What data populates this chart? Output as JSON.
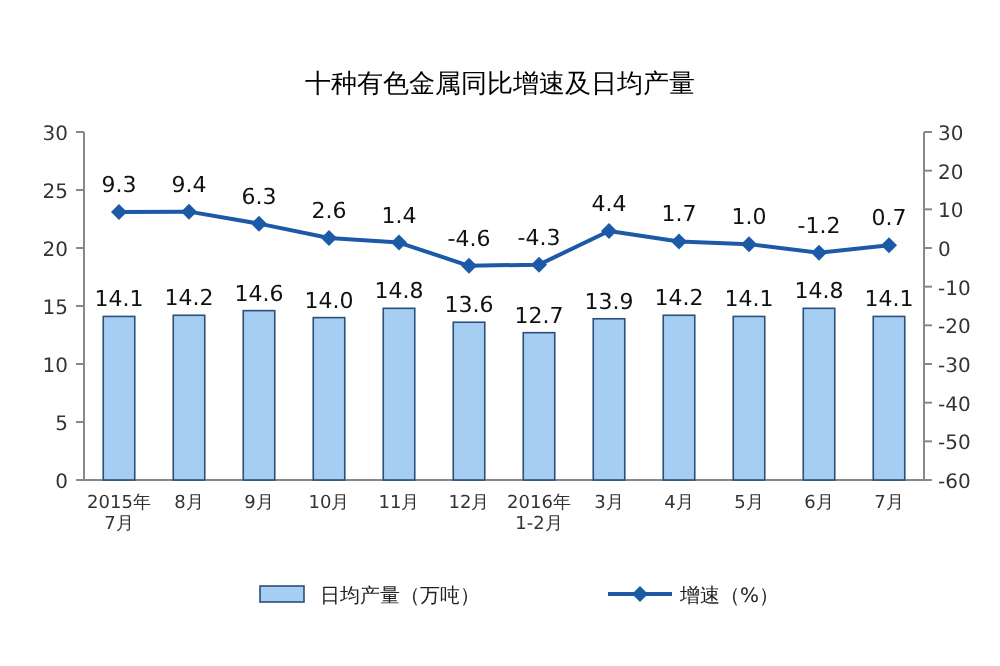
{
  "chart_data": {
    "type": "bar",
    "title": "十种有色金属同比增速及日均产量",
    "categories": [
      "2015年\n7月",
      "8月",
      "9月",
      "10月",
      "11月",
      "12月",
      "2016年\n1-2月",
      "3月",
      "4月",
      "5月",
      "6月",
      "7月"
    ],
    "series": [
      {
        "name": "日均产量（万吨）",
        "color": "#a6cdf2",
        "values": [
          14.1,
          14.2,
          14.6,
          14.0,
          14.8,
          13.6,
          12.7,
          13.9,
          14.2,
          14.1,
          14.8,
          14.1
        ],
        "value_labels": [
          "14.1",
          "14.2",
          "14.6",
          "14.0",
          "14.8",
          "13.6",
          "12.7",
          "13.9",
          "14.2",
          "14.1",
          "14.8",
          "14.1"
        ]
      },
      {
        "name": "增速（%）",
        "type": "line",
        "axis": "y2",
        "color": "#1c5aa8",
        "marker": "diamond",
        "values": [
          9.3,
          9.4,
          6.3,
          2.6,
          1.4,
          -4.6,
          -4.3,
          4.4,
          1.7,
          1.0,
          -1.2,
          0.7
        ],
        "value_labels": [
          "9.3",
          "9.4",
          "6.3",
          "2.6",
          "1.4",
          "-4.6",
          "-4.3",
          "4.4",
          "1.7",
          "1.0",
          "-1.2",
          "0.7"
        ]
      }
    ],
    "ylim": [
      0,
      30
    ],
    "yticks": [
      0,
      5,
      10,
      15,
      20,
      25,
      30
    ],
    "y2lim": [
      -60,
      30
    ],
    "y2ticks": [
      -60,
      -50,
      -40,
      -30,
      -20,
      -10,
      0,
      10,
      20,
      30
    ],
    "legend": "bottom"
  }
}
